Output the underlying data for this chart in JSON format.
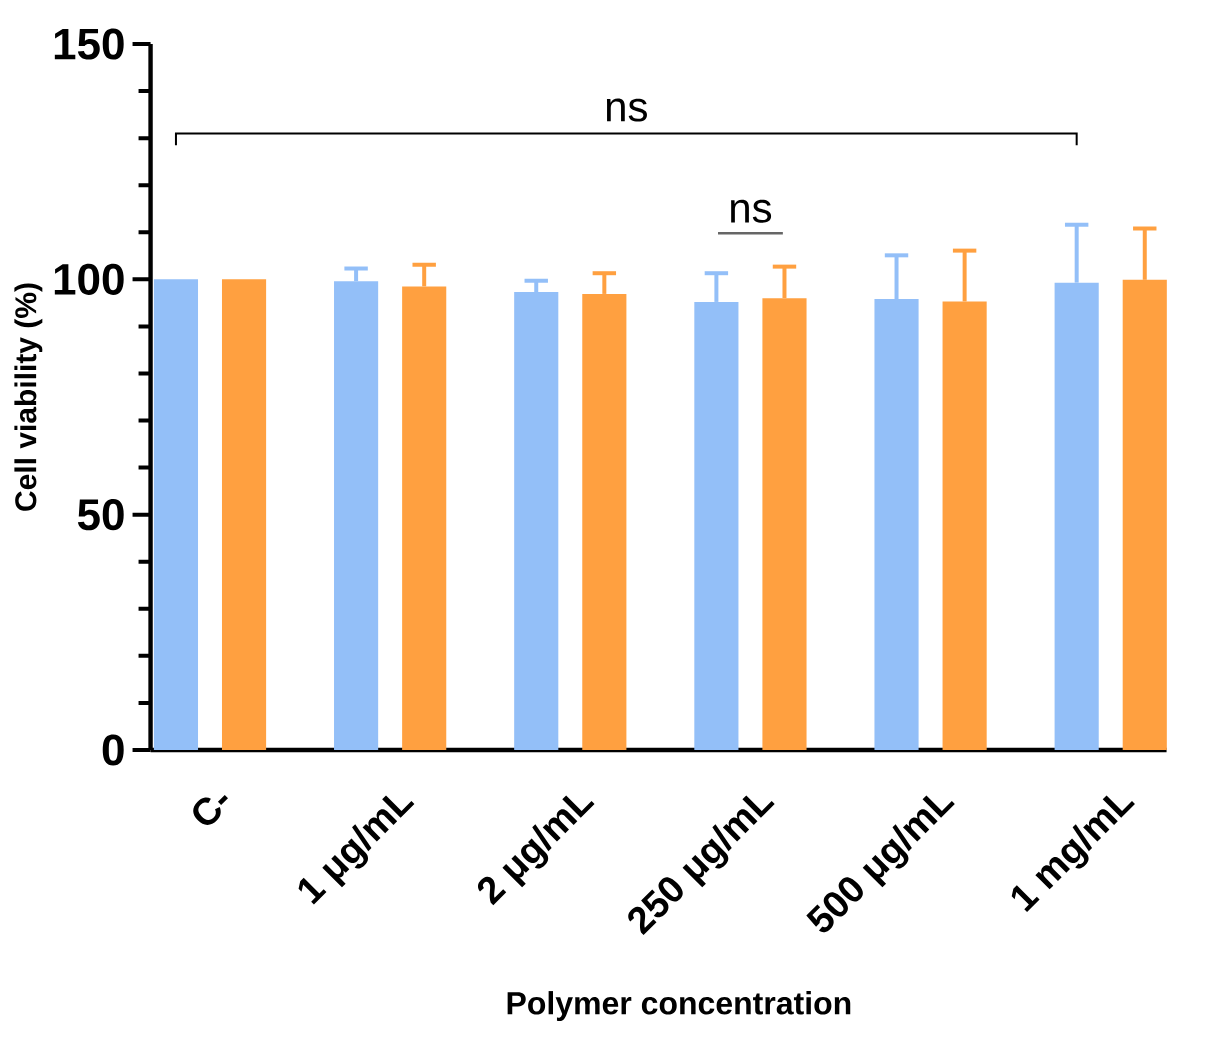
{
  "chart_data": {
    "type": "bar",
    "xlabel": "Polymer concentration",
    "ylabel": "Cell viability (%)",
    "categories": [
      "C-",
      "1 μg/mL",
      "2 μg/mL",
      "250 μg/mL",
      "500 μg/mL",
      "1 mg/mL"
    ],
    "series": [
      {
        "color": "#93bff8",
        "values": [
          100,
          99.6,
          97.3,
          95.2,
          95.8,
          99.3
        ],
        "errors": [
          null,
          [
            99.6,
            102.3
          ],
          [
            97.3,
            99.7
          ],
          [
            95.2,
            101.3
          ],
          [
            95.8,
            105.1
          ],
          [
            99.3,
            111.6
          ]
        ]
      },
      {
        "color": "#ffa040",
        "values": [
          100,
          98.5,
          96.9,
          96.0,
          95.3,
          99.9
        ],
        "errors": [
          null,
          [
            98.5,
            103.1
          ],
          [
            96.9,
            101.3
          ],
          [
            96.0,
            102.7
          ],
          [
            95.3,
            106.1
          ],
          [
            99.9,
            110.8
          ]
        ]
      }
    ],
    "ylim": [
      0,
      150
    ],
    "yticks": [
      0,
      50,
      100,
      150
    ],
    "annotations": [
      "ns",
      "ns"
    ]
  }
}
